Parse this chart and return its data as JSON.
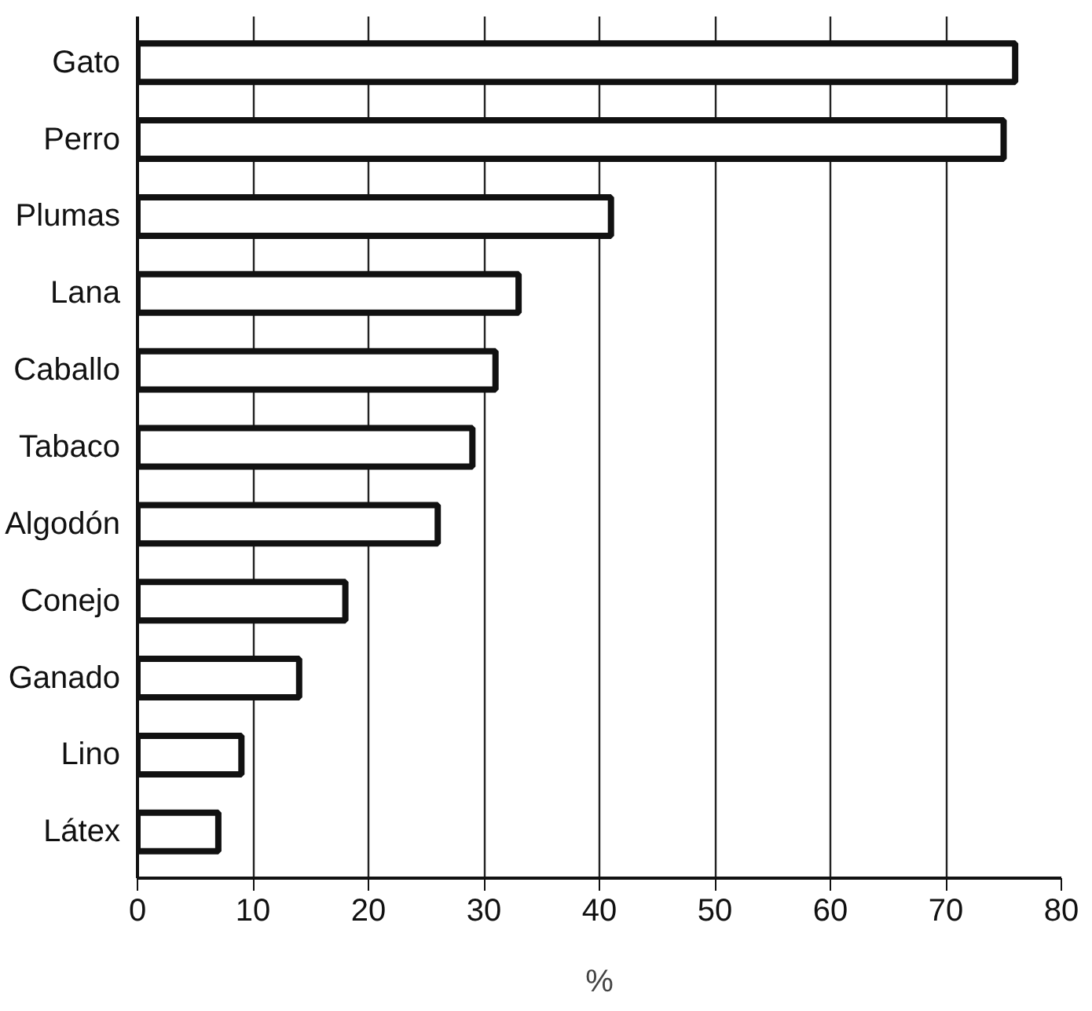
{
  "chart_data": {
    "type": "bar",
    "orientation": "horizontal",
    "categories": [
      "Gato",
      "Perro",
      "Plumas",
      "Lana",
      "Caballo",
      "Tabaco",
      "Algodón",
      "Conejo",
      "Ganado",
      "Lino",
      "Látex"
    ],
    "values": [
      76,
      75,
      41,
      33,
      31,
      29,
      26,
      18,
      14,
      9,
      7
    ],
    "color": "#ffffff",
    "xlim": [
      0,
      80
    ],
    "xticks": [
      0,
      10,
      20,
      30,
      40,
      50,
      60,
      70,
      80
    ],
    "xlabel": "%",
    "grid": "x"
  }
}
